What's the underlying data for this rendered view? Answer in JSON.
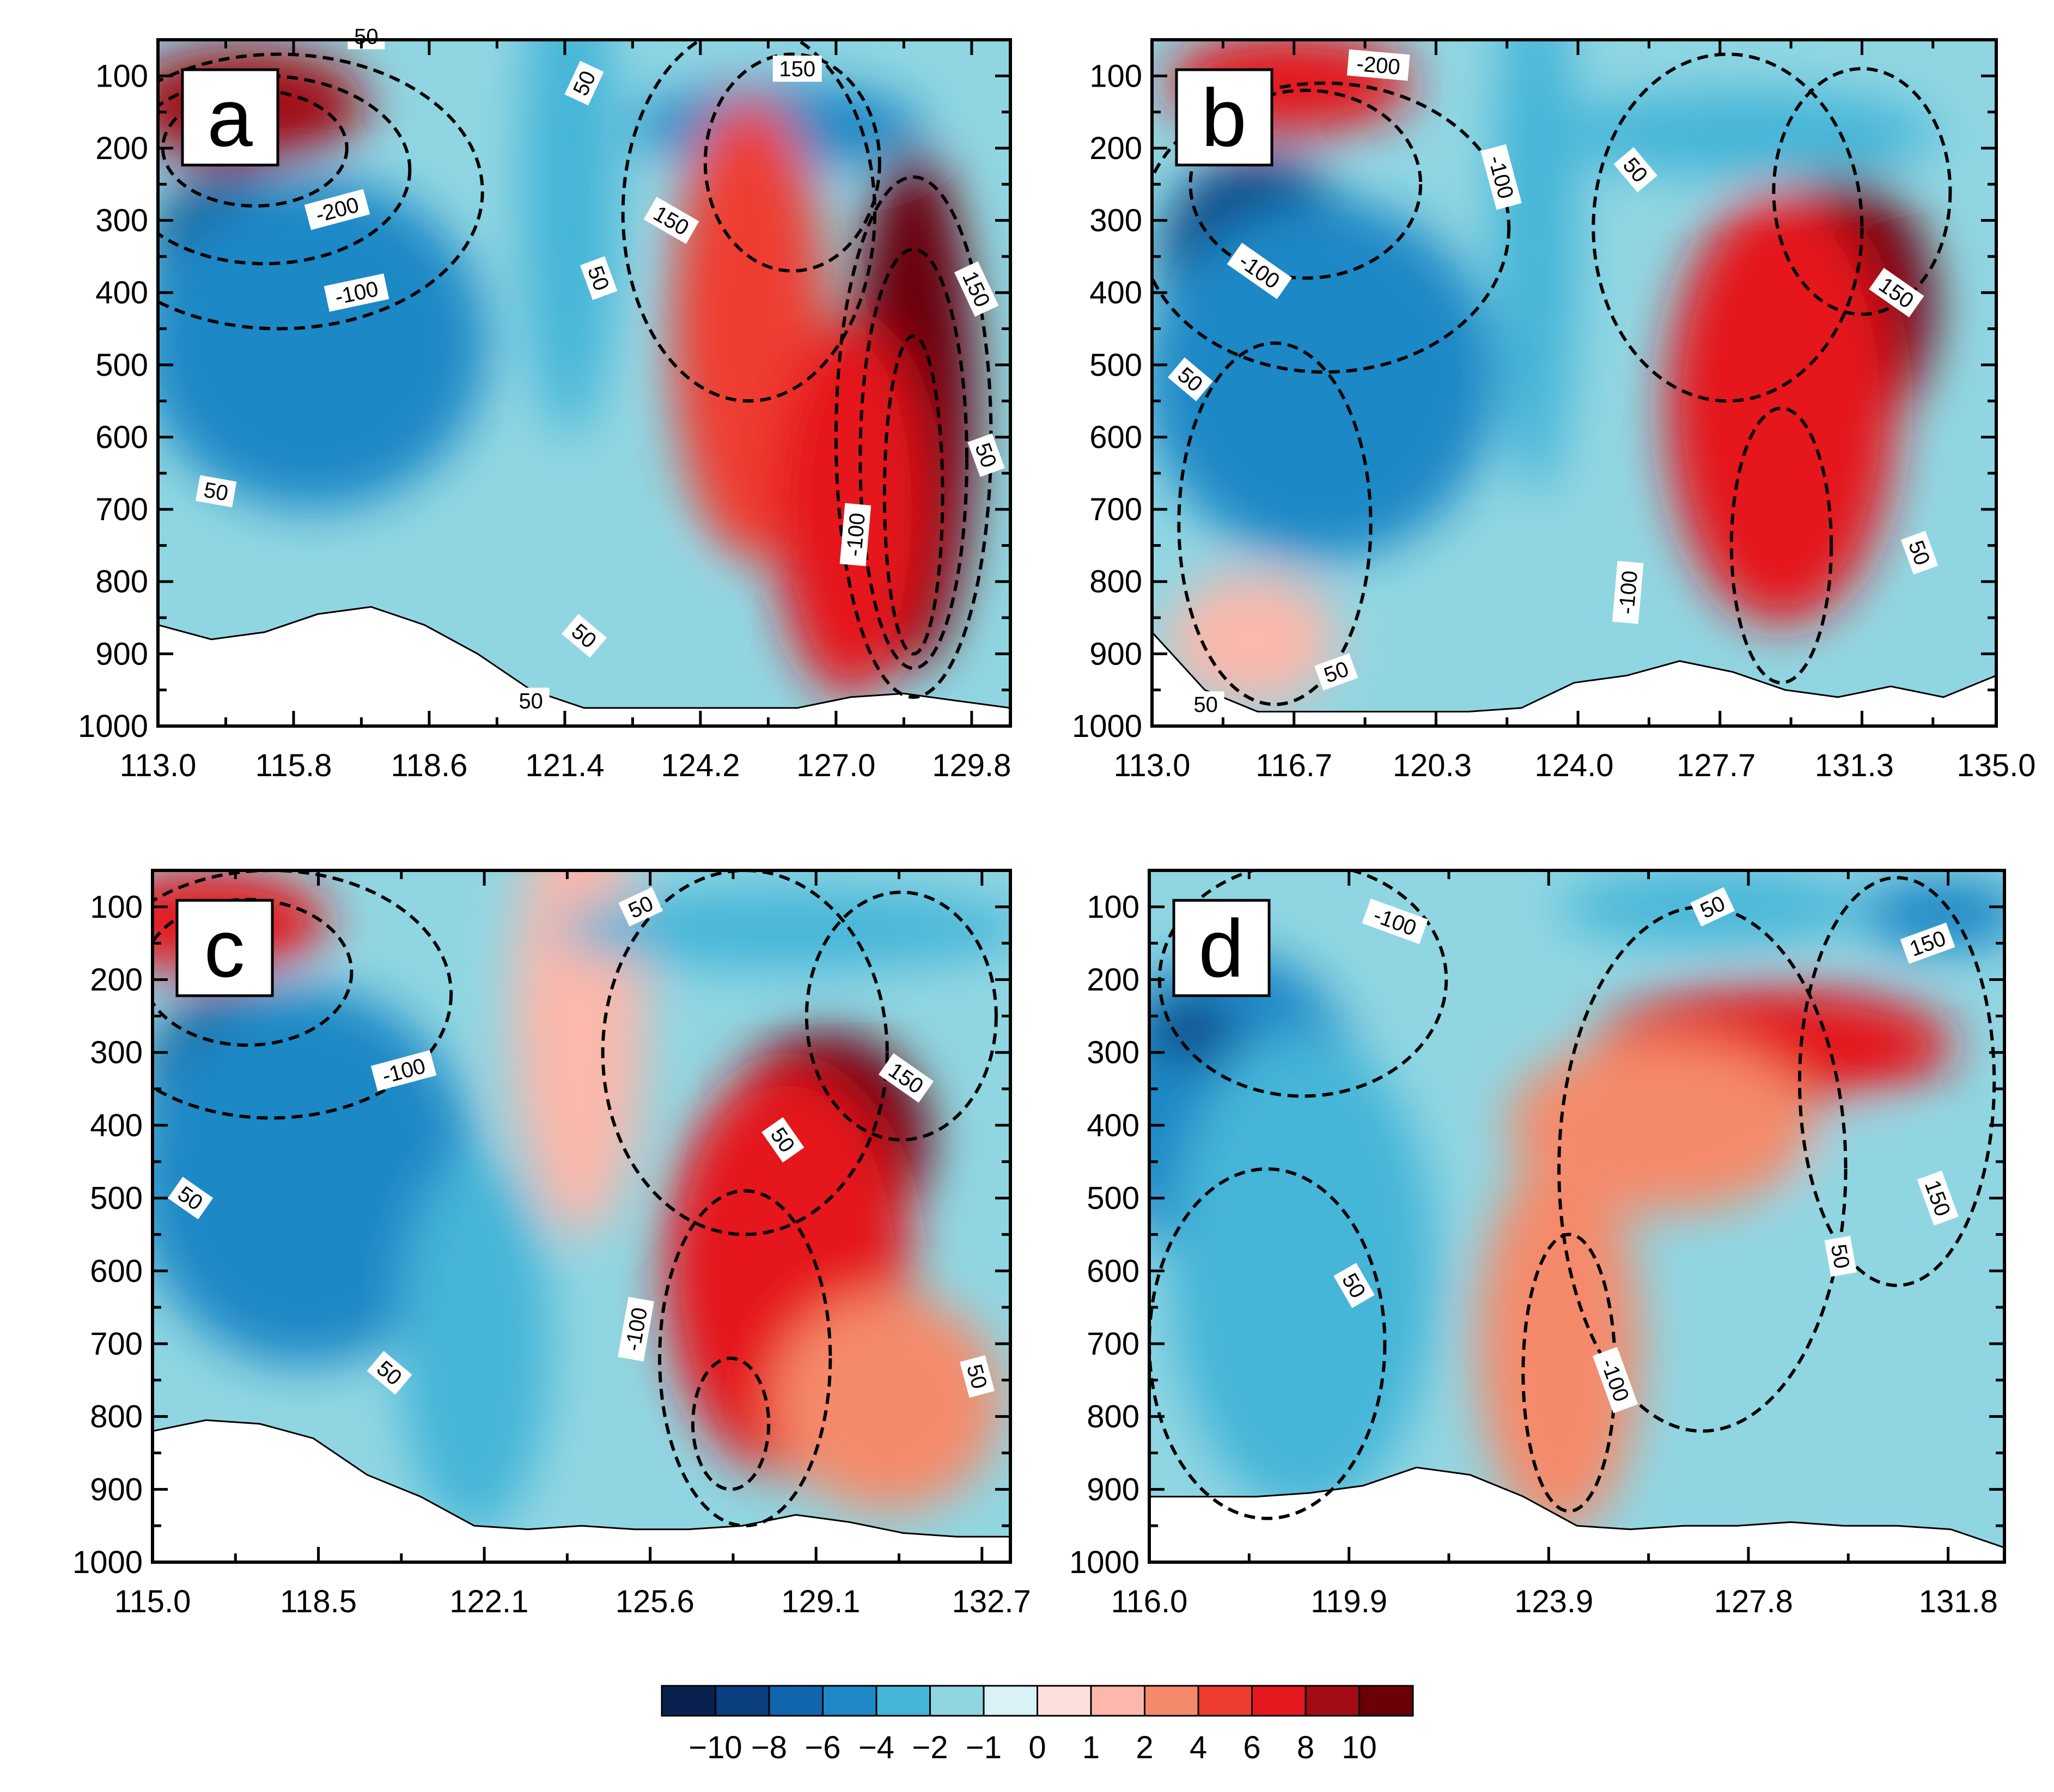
{
  "chart_data": {
    "type": "filled-contour cross-sections (4 panels)",
    "y_axis": {
      "ticks": [
        100,
        200,
        300,
        400,
        500,
        600,
        700,
        800,
        900,
        1000
      ],
      "ylim": [
        1000,
        50
      ],
      "inverted": true
    },
    "colorbar": {
      "labels": [
        "−10",
        "−8",
        "−6",
        "−4",
        "−2",
        "−1",
        "0",
        "1",
        "2",
        "4",
        "6",
        "8",
        "10"
      ],
      "colors": [
        "#08214f",
        "#0b3f80",
        "#0f66ad",
        "#1f88c6",
        "#44b5d8",
        "#90d6e2",
        "#d8f2f8",
        "#fde0de",
        "#fbb8ab",
        "#f58a6b",
        "#ef3d30",
        "#e5181f",
        "#a20c14",
        "#6b0009"
      ]
    },
    "panels": [
      {
        "letter": "a",
        "x_ticks": [
          "113.0",
          "115.8",
          "118.6",
          "121.4",
          "124.2",
          "127.0",
          "129.8"
        ],
        "xlim": [
          113.0,
          130.6
        ],
        "features": [
          {
            "lon": 114.6,
            "p": 360,
            "value": -10,
            "rx": 1.8,
            "ry": 130
          },
          {
            "lon": 116.2,
            "p": 470,
            "value": -6,
            "rx": 3.6,
            "ry": 230
          },
          {
            "lon": 114.8,
            "p": 140,
            "value": 8,
            "rx": 2.5,
            "ry": 80
          },
          {
            "lon": 121.5,
            "p": 250,
            "value": -3,
            "rx": 1.0,
            "ry": 350
          },
          {
            "lon": 125.8,
            "p": 170,
            "value": -5,
            "rx": 3.0,
            "ry": 60
          },
          {
            "lon": 125.2,
            "p": 450,
            "value": 4,
            "rx": 1.6,
            "ry": 320
          },
          {
            "lon": 128.6,
            "p": 560,
            "value": 11,
            "rx": 1.3,
            "ry": 360
          },
          {
            "lon": 127.3,
            "p": 700,
            "value": 6,
            "rx": 1.6,
            "ry": 260
          },
          {
            "lon": 122.9,
            "p": 860,
            "value": -1.5,
            "rx": 1.2,
            "ry": 100
          }
        ],
        "contours": [
          {
            "lon": 115.5,
            "p": 260,
            "rx": 4.2,
            "ry": 190
          },
          {
            "lon": 115.2,
            "p": 230,
            "rx": 3.0,
            "ry": 130
          },
          {
            "lon": 115.0,
            "p": 200,
            "rx": 1.9,
            "ry": 80
          },
          {
            "lon": 125.2,
            "p": 290,
            "rx": 2.6,
            "ry": 260
          },
          {
            "lon": 126.1,
            "p": 220,
            "rx": 1.8,
            "ry": 150
          },
          {
            "lon": 128.6,
            "p": 600,
            "rx": 1.6,
            "ry": 360
          },
          {
            "lon": 128.6,
            "p": 630,
            "rx": 1.1,
            "ry": 290
          },
          {
            "lon": 128.6,
            "p": 680,
            "rx": 0.6,
            "ry": 220
          }
        ],
        "terrain_p": [
          860,
          880,
          870,
          845,
          835,
          860,
          900,
          950,
          975,
          975,
          975,
          975,
          975,
          960,
          955,
          965,
          975
        ],
        "contour_labels": [
          {
            "text": "50",
            "lon": 117.3,
            "p": 45,
            "angle": 0
          },
          {
            "text": "150",
            "lon": 126.2,
            "p": 90,
            "angle": 0
          },
          {
            "text": "-200",
            "lon": 116.7,
            "p": 285,
            "angle": -15
          },
          {
            "text": "-100",
            "lon": 117.1,
            "p": 400,
            "angle": -12
          },
          {
            "text": "50",
            "lon": 121.8,
            "p": 110,
            "angle": -65
          },
          {
            "text": "150",
            "lon": 123.6,
            "p": 300,
            "angle": 30
          },
          {
            "text": "50",
            "lon": 122.1,
            "p": 380,
            "angle": 70
          },
          {
            "text": "150",
            "lon": 129.9,
            "p": 395,
            "angle": 65
          },
          {
            "text": "-100",
            "lon": 127.4,
            "p": 735,
            "angle": -85
          },
          {
            "text": "50",
            "lon": 130.1,
            "p": 625,
            "angle": 70
          },
          {
            "text": "50",
            "lon": 114.2,
            "p": 675,
            "angle": 10
          },
          {
            "text": "50",
            "lon": 121.8,
            "p": 875,
            "angle": 40
          },
          {
            "text": "50",
            "lon": 120.7,
            "p": 965,
            "angle": 0
          }
        ]
      },
      {
        "letter": "b",
        "x_ticks": [
          "113.0",
          "116.7",
          "120.3",
          "124.0",
          "127.7",
          "131.3",
          "135.0"
        ],
        "xlim": [
          113.0,
          135.0
        ],
        "features": [
          {
            "lon": 115.8,
            "p": 360,
            "value": -10,
            "rx": 2.6,
            "ry": 150
          },
          {
            "lon": 117.4,
            "p": 520,
            "value": -6,
            "rx": 4.6,
            "ry": 250
          },
          {
            "lon": 116.6,
            "p": 110,
            "value": 6,
            "rx": 3.2,
            "ry": 70
          },
          {
            "lon": 123.0,
            "p": 300,
            "value": -3,
            "rx": 1.1,
            "ry": 380
          },
          {
            "lon": 128.5,
            "p": 180,
            "value": -4,
            "rx": 5.0,
            "ry": 60
          },
          {
            "lon": 131.0,
            "p": 420,
            "value": 11,
            "rx": 2.4,
            "ry": 180
          },
          {
            "lon": 129.4,
            "p": 560,
            "value": 6,
            "rx": 3.0,
            "ry": 300
          },
          {
            "lon": 115.6,
            "p": 880,
            "value": 1.5,
            "rx": 2.2,
            "ry": 90
          }
        ],
        "contours": [
          {
            "lon": 117.5,
            "p": 310,
            "rx": 4.8,
            "ry": 200
          },
          {
            "lon": 117.0,
            "p": 250,
            "rx": 3.0,
            "ry": 130
          },
          {
            "lon": 128.0,
            "p": 310,
            "rx": 3.5,
            "ry": 240
          },
          {
            "lon": 131.5,
            "p": 260,
            "rx": 2.3,
            "ry": 170
          },
          {
            "lon": 129.4,
            "p": 750,
            "rx": 1.3,
            "ry": 190
          },
          {
            "lon": 116.2,
            "p": 720,
            "rx": 2.5,
            "ry": 250
          }
        ],
        "terrain_p": [
          870,
          950,
          980,
          980,
          980,
          980,
          980,
          975,
          940,
          930,
          910,
          925,
          950,
          960,
          945,
          960,
          930
        ],
        "contour_labels": [
          {
            "text": "-200",
            "lon": 118.9,
            "p": 85,
            "angle": 5
          },
          {
            "text": "-100",
            "lon": 122.1,
            "p": 240,
            "angle": 75
          },
          {
            "text": "50",
            "lon": 125.6,
            "p": 230,
            "angle": 50
          },
          {
            "text": "-100",
            "lon": 115.8,
            "p": 370,
            "angle": 35
          },
          {
            "text": "150",
            "lon": 132.4,
            "p": 400,
            "angle": 35
          },
          {
            "text": "50",
            "lon": 114.0,
            "p": 520,
            "angle": 40
          },
          {
            "text": "-100",
            "lon": 125.4,
            "p": 815,
            "angle": -85
          },
          {
            "text": "50",
            "lon": 133.0,
            "p": 760,
            "angle": 70
          },
          {
            "text": "50",
            "lon": 117.8,
            "p": 925,
            "angle": -20
          },
          {
            "text": "50",
            "lon": 114.4,
            "p": 970,
            "angle": 0
          }
        ]
      },
      {
        "letter": "c",
        "x_ticks": [
          "115.0",
          "118.5",
          "122.1",
          "125.6",
          "129.1",
          "132.7"
        ],
        "xlim": [
          115.0,
          133.1
        ],
        "features": [
          {
            "lon": 116.8,
            "p": 360,
            "value": -10,
            "rx": 2.0,
            "ry": 150
          },
          {
            "lon": 118.2,
            "p": 470,
            "value": -6,
            "rx": 3.6,
            "ry": 260
          },
          {
            "lon": 116.2,
            "p": 120,
            "value": 7,
            "rx": 2.5,
            "ry": 70
          },
          {
            "lon": 124.0,
            "p": 250,
            "value": 1.5,
            "rx": 1.4,
            "ry": 300
          },
          {
            "lon": 128.5,
            "p": 130,
            "value": -4,
            "rx": 5.0,
            "ry": 55
          },
          {
            "lon": 129.2,
            "p": 420,
            "value": 11,
            "rx": 2.2,
            "ry": 150
          },
          {
            "lon": 128.4,
            "p": 600,
            "value": 7,
            "rx": 2.6,
            "ry": 280
          },
          {
            "lon": 130.5,
            "p": 780,
            "value": 2.5,
            "rx": 2.4,
            "ry": 150
          },
          {
            "lon": 121.8,
            "p": 700,
            "value": -3,
            "rx": 1.6,
            "ry": 260
          }
        ],
        "contours": [
          {
            "lon": 117.5,
            "p": 220,
            "rx": 3.8,
            "ry": 170
          },
          {
            "lon": 117.0,
            "p": 190,
            "rx": 2.2,
            "ry": 100
          },
          {
            "lon": 127.5,
            "p": 300,
            "rx": 3.0,
            "ry": 250
          },
          {
            "lon": 130.8,
            "p": 250,
            "rx": 2.0,
            "ry": 170
          },
          {
            "lon": 127.5,
            "p": 720,
            "rx": 1.8,
            "ry": 230
          },
          {
            "lon": 127.2,
            "p": 810,
            "rx": 0.8,
            "ry": 90
          }
        ],
        "terrain_p": [
          820,
          805,
          810,
          830,
          880,
          910,
          950,
          955,
          950,
          955,
          955,
          950,
          935,
          945,
          960,
          965,
          965
        ],
        "contour_labels": [
          {
            "text": "50",
            "lon": 125.3,
            "p": 100,
            "angle": -25
          },
          {
            "text": "-100",
            "lon": 120.3,
            "p": 325,
            "angle": -15
          },
          {
            "text": "150",
            "lon": 130.9,
            "p": 335,
            "angle": 35
          },
          {
            "text": "50",
            "lon": 128.3,
            "p": 420,
            "angle": 55
          },
          {
            "text": "50",
            "lon": 115.8,
            "p": 500,
            "angle": 35
          },
          {
            "text": "-100",
            "lon": 125.2,
            "p": 680,
            "angle": -80
          },
          {
            "text": "50",
            "lon": 120.0,
            "p": 740,
            "angle": 40
          },
          {
            "text": "50",
            "lon": 132.4,
            "p": 745,
            "angle": 75
          }
        ]
      },
      {
        "letter": "d",
        "x_ticks": [
          "116.0",
          "119.9",
          "123.9",
          "127.8",
          "131.8"
        ],
        "xlim": [
          116.0,
          132.7
        ],
        "features": [
          {
            "lon": 117.6,
            "p": 380,
            "value": -6,
            "rx": 2.6,
            "ry": 220
          },
          {
            "lon": 116.8,
            "p": 270,
            "value": -10,
            "rx": 0.9,
            "ry": 40
          },
          {
            "lon": 119.0,
            "p": 600,
            "value": -3,
            "rx": 2.6,
            "ry": 330
          },
          {
            "lon": 128.2,
            "p": 290,
            "value": 6,
            "rx": 3.5,
            "ry": 80
          },
          {
            "lon": 126.0,
            "p": 400,
            "value": 2.5,
            "rx": 3.0,
            "ry": 120
          },
          {
            "lon": 124.0,
            "p": 700,
            "value": 2.0,
            "rx": 1.6,
            "ry": 260
          },
          {
            "lon": 127.0,
            "p": 100,
            "value": -4,
            "rx": 3.0,
            "ry": 50
          },
          {
            "lon": 131.5,
            "p": 110,
            "value": -5,
            "rx": 1.6,
            "ry": 50
          },
          {
            "lon": 130.0,
            "p": 650,
            "value": -1.2,
            "rx": 1.4,
            "ry": 260
          }
        ],
        "contours": [
          {
            "lon": 119.0,
            "p": 200,
            "rx": 2.8,
            "ry": 160
          },
          {
            "lon": 124.2,
            "p": 740,
            "rx": 0.9,
            "ry": 190
          },
          {
            "lon": 126.8,
            "p": 460,
            "rx": 2.8,
            "ry": 360
          },
          {
            "lon": 130.6,
            "p": 340,
            "rx": 1.9,
            "ry": 280
          },
          {
            "lon": 118.3,
            "p": 700,
            "rx": 2.3,
            "ry": 240
          }
        ],
        "terrain_p": [
          910,
          910,
          910,
          905,
          895,
          870,
          880,
          910,
          950,
          955,
          950,
          950,
          945,
          950,
          950,
          955,
          980
        ],
        "contour_labels": [
          {
            "text": "-100",
            "lon": 120.8,
            "p": 120,
            "angle": 20
          },
          {
            "text": "50",
            "lon": 127.0,
            "p": 100,
            "angle": -25
          },
          {
            "text": "150",
            "lon": 131.2,
            "p": 150,
            "angle": -20
          },
          {
            "text": "150",
            "lon": 131.4,
            "p": 500,
            "angle": 70
          },
          {
            "text": "50",
            "lon": 120.0,
            "p": 620,
            "angle": 60
          },
          {
            "text": "50",
            "lon": 129.5,
            "p": 580,
            "angle": 80
          },
          {
            "text": "-100",
            "lon": 125.1,
            "p": 750,
            "angle": 70
          }
        ]
      }
    ]
  }
}
